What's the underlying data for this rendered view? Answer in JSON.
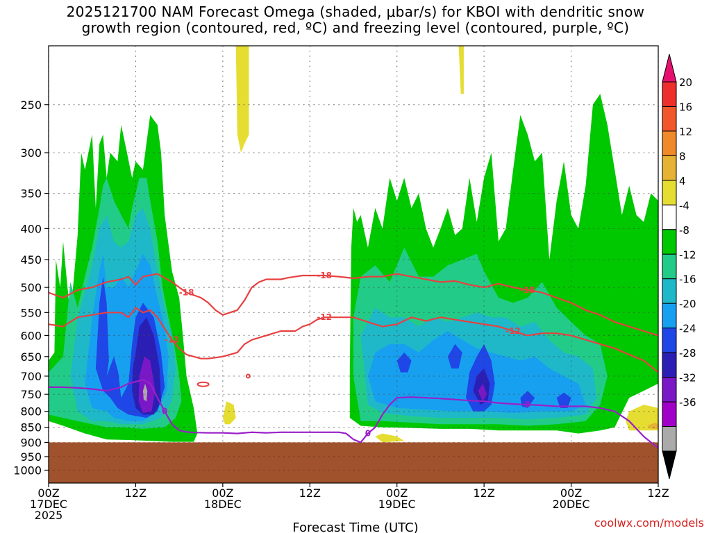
{
  "title_line1": "2025121700 NAM Forecast Omega (shaded, μbar/s) for KBOI with dendritic snow",
  "title_line2": "growth region (contoured, red, ºC) and freezing level (contoured, purple, ºC)",
  "credit": "coolwx.com/models",
  "chart_data": {
    "type": "heatmap",
    "xlabel": "Forecast Time (UTC)",
    "ylabel": "",
    "x_ticks": [
      {
        "hour": 0,
        "lines": [
          "00Z",
          "17DEC",
          "2025"
        ]
      },
      {
        "hour": 12,
        "lines": [
          "12Z"
        ]
      },
      {
        "hour": 24,
        "lines": [
          "00Z",
          "18DEC"
        ]
      },
      {
        "hour": 36,
        "lines": [
          "12Z"
        ]
      },
      {
        "hour": 48,
        "lines": [
          "00Z",
          "19DEC"
        ]
      },
      {
        "hour": 60,
        "lines": [
          "12Z"
        ]
      },
      {
        "hour": 72,
        "lines": [
          "00Z",
          "20DEC"
        ]
      },
      {
        "hour": 84,
        "lines": [
          "12Z"
        ]
      }
    ],
    "xlim": [
      0,
      84
    ],
    "y_ticks": [
      250,
      300,
      350,
      400,
      450,
      500,
      550,
      600,
      650,
      700,
      750,
      800,
      850,
      900,
      950,
      1000
    ],
    "ylim_hPa": [
      200,
      1050
    ],
    "y_scale": "log-pressure (inverted)",
    "grid": true,
    "ground_level_hPa": 900,
    "colorbar": {
      "labels": [
        "20",
        "16",
        "12",
        "8",
        "4",
        "-4",
        "-8",
        "-12",
        "-16",
        "-20",
        "-24",
        "-28",
        "-32",
        "-36"
      ],
      "colors": [
        "#e8106e",
        "#ee2d2d",
        "#f2572c",
        "#ee8a2a",
        "#e6b233",
        "#e6dd33",
        "#ffffff",
        "#00c800",
        "#22cc88",
        "#1fb8c8",
        "#18a0f0",
        "#1f46e6",
        "#2b1eb4",
        "#7a18c8",
        "#a000c8",
        "#aaaaaa",
        "#000000"
      ]
    },
    "omega_regions": [
      {
        "level": "-4 to -8",
        "hours": [
          0,
          18
        ],
        "p_range": [
          275,
          900
        ]
      },
      {
        "level": "-4 to -8",
        "hours": [
          42,
          84
        ],
        "p_range": [
          230,
          860
        ]
      },
      {
        "level": "-20 to -28",
        "hours": [
          7,
          14
        ],
        "p_range": [
          470,
          850
        ]
      },
      {
        "level": "-20 to -28",
        "hours": [
          58,
          62
        ],
        "p_range": [
          630,
          810
        ]
      },
      {
        "level": "4 to 8",
        "hours": [
          26,
          27
        ],
        "p_range": [
          200,
          300
        ]
      },
      {
        "level": "4 to 8",
        "hours": [
          79,
          84
        ],
        "p_range": [
          780,
          860
        ]
      }
    ],
    "series": [
      {
        "name": "-18",
        "color": "#e84040",
        "x": [
          0,
          2,
          4,
          6,
          8,
          10,
          11,
          12,
          13,
          15,
          17,
          19,
          21,
          22,
          23,
          24,
          25,
          26,
          27,
          28,
          29,
          30,
          31,
          32,
          33,
          34,
          35,
          36,
          37,
          38,
          40,
          42,
          44,
          46,
          48,
          50,
          52,
          54,
          56,
          58,
          60,
          62,
          64,
          66,
          68,
          70,
          72,
          74,
          76,
          78,
          80,
          82,
          84
        ],
        "y": [
          510,
          520,
          505,
          500,
          490,
          485,
          480,
          495,
          480,
          475,
          490,
          510,
          520,
          530,
          545,
          555,
          550,
          545,
          525,
          500,
          490,
          485,
          485,
          485,
          482,
          480,
          478,
          478,
          478,
          478,
          480,
          483,
          480,
          480,
          475,
          480,
          485,
          490,
          488,
          495,
          500,
          493,
          500,
          505,
          510,
          520,
          530,
          545,
          555,
          570,
          580,
          590,
          600
        ]
      },
      {
        "name": "-12",
        "color": "#e84040",
        "x": [
          0,
          2,
          4,
          6,
          8,
          10,
          11,
          12,
          13,
          14,
          15,
          16,
          17,
          18,
          19,
          20,
          21,
          22,
          24,
          26,
          27,
          28,
          30,
          31,
          32,
          33,
          34,
          35,
          36,
          37,
          38,
          40,
          42,
          44,
          46,
          48,
          50,
          52,
          54,
          56,
          58,
          60,
          62,
          64,
          66,
          68,
          70,
          72,
          74,
          76,
          78,
          80,
          82,
          84
        ],
        "y": [
          575,
          580,
          560,
          555,
          550,
          550,
          560,
          540,
          550,
          545,
          560,
          585,
          610,
          630,
          645,
          650,
          655,
          655,
          650,
          640,
          620,
          610,
          600,
          595,
          590,
          590,
          590,
          580,
          575,
          565,
          560,
          560,
          560,
          570,
          580,
          575,
          560,
          568,
          560,
          565,
          570,
          575,
          580,
          590,
          600,
          595,
          595,
          600,
          610,
          620,
          630,
          645,
          660,
          690
        ]
      },
      {
        "name": "0",
        "color": "#9920c8",
        "x": [
          0,
          2,
          4,
          6,
          8,
          10,
          11,
          12,
          13,
          14,
          15,
          16,
          17,
          18,
          19,
          20,
          22,
          24,
          26,
          28,
          30,
          32,
          34,
          36,
          38,
          40,
          41,
          42,
          43,
          44,
          45,
          46,
          47,
          48,
          50,
          52,
          54,
          56,
          58,
          60,
          62,
          64,
          66,
          68,
          70,
          72,
          74,
          76,
          78,
          80,
          82,
          84
        ],
        "y": [
          730,
          730,
          732,
          735,
          740,
          730,
          720,
          715,
          710,
          720,
          760,
          800,
          840,
          860,
          865,
          867,
          868,
          868,
          870,
          866,
          868,
          866,
          866,
          866,
          866,
          866,
          870,
          890,
          900,
          870,
          850,
          810,
          780,
          760,
          758,
          760,
          762,
          765,
          768,
          770,
          775,
          778,
          780,
          782,
          785,
          785,
          785,
          790,
          800,
          830,
          880,
          920
        ]
      }
    ]
  }
}
